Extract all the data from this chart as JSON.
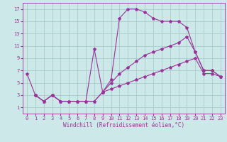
{
  "bg_color": "#cce8e8",
  "grid_color": "#aacccc",
  "line_color": "#993399",
  "marker": "*",
  "markersize": 3,
  "linewidth": 0.8,
  "xlabel": "Windchill (Refroidissement éolien,°C)",
  "xlabel_fontsize": 5.5,
  "tick_fontsize": 5,
  "xlim": [
    -0.5,
    23.5
  ],
  "ylim": [
    0,
    18
  ],
  "xticks": [
    0,
    1,
    2,
    3,
    4,
    5,
    6,
    7,
    8,
    9,
    10,
    11,
    12,
    13,
    14,
    15,
    16,
    17,
    18,
    19,
    20,
    21,
    22,
    23
  ],
  "yticks": [
    1,
    3,
    5,
    7,
    9,
    11,
    13,
    15,
    17
  ],
  "curves": [
    {
      "x": [
        0,
        1,
        2,
        3,
        4,
        5,
        6,
        7,
        8,
        9,
        10,
        11,
        12,
        13,
        14,
        15,
        16,
        17,
        18,
        19,
        20,
        21,
        22,
        23
      ],
      "y": [
        6.5,
        3.0,
        2.0,
        3.0,
        2.0,
        2.0,
        2.0,
        2.0,
        2.0,
        3.5,
        5.5,
        15.5,
        17.0,
        17.0,
        16.5,
        15.5,
        15.0,
        15.0,
        15.0,
        14.0,
        10.0,
        7.0,
        7.0,
        6.0
      ]
    },
    {
      "x": [
        1,
        2,
        3,
        4,
        5,
        6,
        7,
        8,
        9,
        10,
        11,
        12,
        13,
        14,
        15,
        16,
        17,
        18,
        19,
        20,
        21,
        22,
        23
      ],
      "y": [
        3.0,
        2.0,
        3.0,
        2.0,
        2.0,
        2.0,
        2.0,
        10.5,
        3.5,
        5.0,
        6.5,
        7.5,
        8.5,
        9.5,
        10.0,
        10.5,
        11.0,
        11.5,
        12.5,
        10.0,
        7.0,
        7.0,
        6.0
      ]
    },
    {
      "x": [
        1,
        2,
        3,
        4,
        5,
        6,
        7,
        8,
        9,
        10,
        11,
        12,
        13,
        14,
        15,
        16,
        17,
        18,
        19,
        20,
        21,
        22,
        23
      ],
      "y": [
        3.0,
        2.0,
        3.0,
        2.0,
        2.0,
        2.0,
        2.0,
        2.0,
        3.5,
        4.0,
        4.5,
        5.0,
        5.5,
        6.0,
        6.5,
        7.0,
        7.5,
        8.0,
        8.5,
        9.0,
        6.5,
        6.5,
        6.0
      ]
    }
  ]
}
